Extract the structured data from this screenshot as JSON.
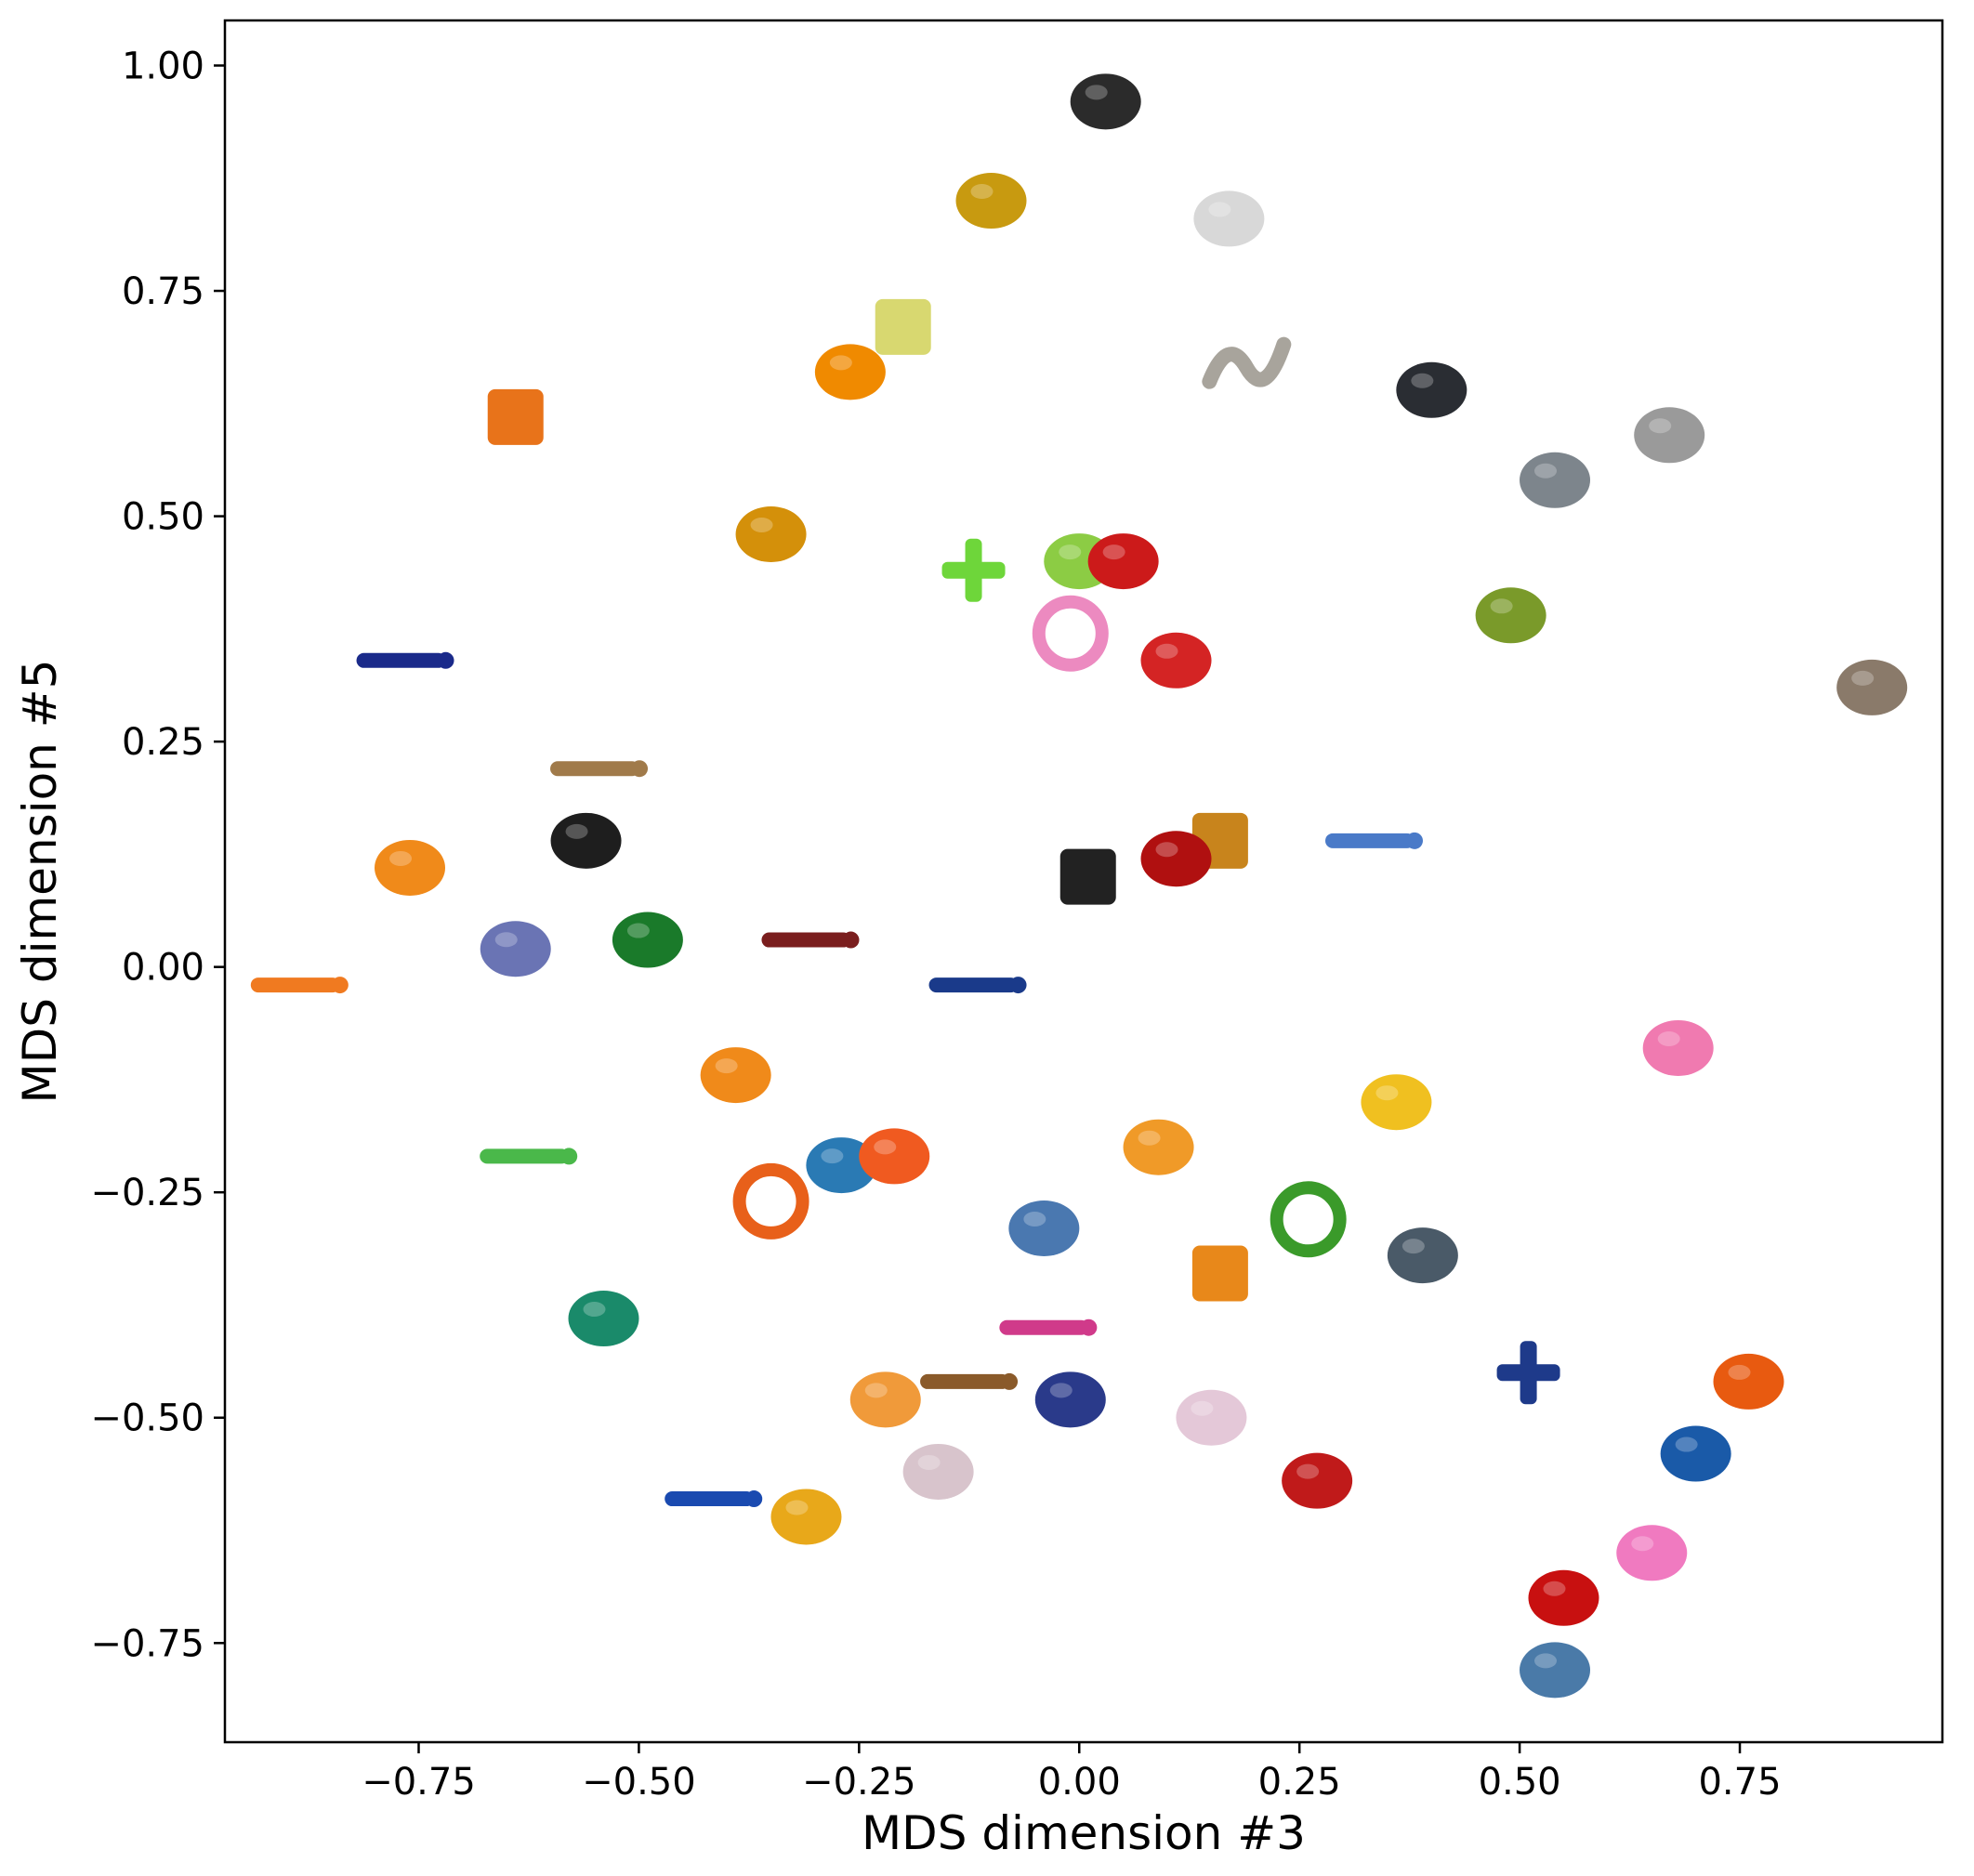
{
  "chart_data": {
    "type": "scatter",
    "title": "",
    "xlabel": "MDS dimension #3",
    "ylabel": "MDS dimension #5",
    "xlim": [
      -0.97,
      0.98
    ],
    "ylim": [
      -0.86,
      1.05
    ],
    "grid": false,
    "xticks": [
      -0.75,
      -0.5,
      -0.25,
      0.0,
      0.25,
      0.5,
      0.75
    ],
    "xtick_labels": [
      "−0.75",
      "−0.50",
      "−0.25",
      "0.00",
      "0.25",
      "0.50",
      "0.75"
    ],
    "yticks": [
      -0.75,
      -0.5,
      -0.25,
      0.0,
      0.25,
      0.5,
      0.75,
      1.0
    ],
    "ytick_labels": [
      "−0.75",
      "−0.50",
      "−0.25",
      "0.00",
      "0.25",
      "0.50",
      "0.75",
      "1.00"
    ],
    "points": [
      {
        "x": 0.03,
        "y": 0.96,
        "shape": "blob",
        "color": "#2b2b2b"
      },
      {
        "x": -0.1,
        "y": 0.85,
        "shape": "blob",
        "color": "#c89a10"
      },
      {
        "x": 0.17,
        "y": 0.83,
        "shape": "blob",
        "color": "#d8d8d8"
      },
      {
        "x": -0.2,
        "y": 0.71,
        "shape": "rect",
        "color": "#d8d870"
      },
      {
        "x": -0.26,
        "y": 0.66,
        "shape": "blob",
        "color": "#f08a00"
      },
      {
        "x": 0.19,
        "y": 0.67,
        "shape": "wave",
        "color": "#a8a49c"
      },
      {
        "x": 0.4,
        "y": 0.64,
        "shape": "blob",
        "color": "#2a2d33"
      },
      {
        "x": -0.64,
        "y": 0.61,
        "shape": "rect",
        "color": "#e8731a"
      },
      {
        "x": 0.67,
        "y": 0.59,
        "shape": "blob",
        "color": "#9a9a9a"
      },
      {
        "x": 0.54,
        "y": 0.54,
        "shape": "blob",
        "color": "#7d858c"
      },
      {
        "x": -0.35,
        "y": 0.48,
        "shape": "blob",
        "color": "#d4900a"
      },
      {
        "x": -0.12,
        "y": 0.44,
        "shape": "cross",
        "color": "#6ed63a"
      },
      {
        "x": 0.0,
        "y": 0.45,
        "shape": "blob",
        "color": "#8ccc44"
      },
      {
        "x": 0.05,
        "y": 0.45,
        "shape": "blob",
        "color": "#cc1a1a"
      },
      {
        "x": 0.49,
        "y": 0.39,
        "shape": "blob",
        "color": "#7a9a2a"
      },
      {
        "x": -0.01,
        "y": 0.37,
        "shape": "ring",
        "color": "#ec8ac0"
      },
      {
        "x": 0.11,
        "y": 0.34,
        "shape": "blob",
        "color": "#d42424"
      },
      {
        "x": -0.77,
        "y": 0.34,
        "shape": "stick",
        "color": "#1a2a8a"
      },
      {
        "x": 0.9,
        "y": 0.31,
        "shape": "blob",
        "color": "#8a7a6a"
      },
      {
        "x": -0.55,
        "y": 0.22,
        "shape": "stick",
        "color": "#a07a4a"
      },
      {
        "x": 0.16,
        "y": 0.14,
        "shape": "rect",
        "color": "#c8841c"
      },
      {
        "x": 0.11,
        "y": 0.12,
        "shape": "blob",
        "color": "#b01010"
      },
      {
        "x": 0.33,
        "y": 0.14,
        "shape": "stick",
        "color": "#4a7ac8"
      },
      {
        "x": 0.01,
        "y": 0.1,
        "shape": "rect",
        "color": "#222222"
      },
      {
        "x": -0.76,
        "y": 0.11,
        "shape": "blob",
        "color": "#f08a1a"
      },
      {
        "x": -0.56,
        "y": 0.14,
        "shape": "blob",
        "color": "#1e1e1e"
      },
      {
        "x": -0.64,
        "y": 0.02,
        "shape": "blob",
        "color": "#6a74b4"
      },
      {
        "x": -0.49,
        "y": 0.03,
        "shape": "blob",
        "color": "#1a7a2a"
      },
      {
        "x": -0.31,
        "y": 0.03,
        "shape": "stick",
        "color": "#7a1e1e"
      },
      {
        "x": -0.12,
        "y": -0.02,
        "shape": "stick",
        "color": "#1a3a8a"
      },
      {
        "x": -0.89,
        "y": -0.02,
        "shape": "stick",
        "color": "#f07a20"
      },
      {
        "x": 0.68,
        "y": -0.09,
        "shape": "blob",
        "color": "#f07ab0"
      },
      {
        "x": -0.39,
        "y": -0.12,
        "shape": "blob",
        "color": "#f08a1a"
      },
      {
        "x": 0.36,
        "y": -0.15,
        "shape": "blob",
        "color": "#f0c020"
      },
      {
        "x": -0.63,
        "y": -0.21,
        "shape": "stick",
        "color": "#4ab84a"
      },
      {
        "x": 0.09,
        "y": -0.2,
        "shape": "blob",
        "color": "#f09a28"
      },
      {
        "x": -0.35,
        "y": -0.26,
        "shape": "ring",
        "color": "#e8601a"
      },
      {
        "x": -0.27,
        "y": -0.22,
        "shape": "blob",
        "color": "#2a7ab4"
      },
      {
        "x": -0.21,
        "y": -0.21,
        "shape": "blob",
        "color": "#f05a20"
      },
      {
        "x": 0.26,
        "y": -0.28,
        "shape": "ring",
        "color": "#3a9a2a"
      },
      {
        "x": -0.04,
        "y": -0.29,
        "shape": "blob",
        "color": "#4a78b0"
      },
      {
        "x": 0.39,
        "y": -0.32,
        "shape": "blob",
        "color": "#4a5a68"
      },
      {
        "x": 0.16,
        "y": -0.34,
        "shape": "rect",
        "color": "#e8881a"
      },
      {
        "x": -0.54,
        "y": -0.39,
        "shape": "blob",
        "color": "#1a8a6a"
      },
      {
        "x": -0.13,
        "y": -0.46,
        "shape": "stick",
        "color": "#8a5a2a"
      },
      {
        "x": -0.04,
        "y": -0.4,
        "shape": "stick",
        "color": "#d03a8a"
      },
      {
        "x": 0.51,
        "y": -0.45,
        "shape": "cross",
        "color": "#1e3a8a"
      },
      {
        "x": 0.76,
        "y": -0.46,
        "shape": "blob",
        "color": "#e85a10"
      },
      {
        "x": -0.01,
        "y": -0.48,
        "shape": "blob",
        "color": "#2a3a8a"
      },
      {
        "x": -0.22,
        "y": -0.48,
        "shape": "blob",
        "color": "#f09a3a"
      },
      {
        "x": 0.15,
        "y": -0.5,
        "shape": "blob",
        "color": "#e4c8d8"
      },
      {
        "x": -0.16,
        "y": -0.56,
        "shape": "blob",
        "color": "#d8c4cc"
      },
      {
        "x": 0.7,
        "y": -0.54,
        "shape": "blob",
        "color": "#1a5aa8"
      },
      {
        "x": 0.27,
        "y": -0.57,
        "shape": "blob",
        "color": "#c01a1a"
      },
      {
        "x": -0.42,
        "y": -0.59,
        "shape": "stick",
        "color": "#1a4ab0"
      },
      {
        "x": -0.31,
        "y": -0.61,
        "shape": "blob",
        "color": "#e8a81a"
      },
      {
        "x": 0.65,
        "y": -0.65,
        "shape": "blob",
        "color": "#f07ac0"
      },
      {
        "x": 0.55,
        "y": -0.7,
        "shape": "blob",
        "color": "#c81010"
      },
      {
        "x": 0.54,
        "y": -0.78,
        "shape": "blob",
        "color": "#4a7aa8"
      }
    ]
  }
}
